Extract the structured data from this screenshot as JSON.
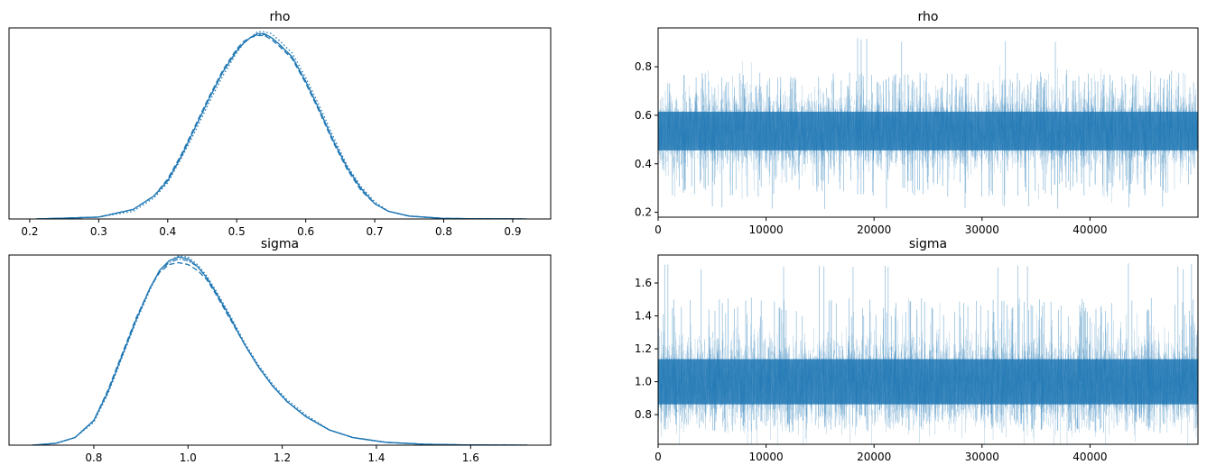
{
  "chart_data": [
    {
      "type": "line",
      "title": "rho",
      "xlabel": "",
      "ylabel": "",
      "xlim": [
        0.17,
        0.955
      ],
      "ylim": [
        0,
        1.0
      ],
      "xticks": [
        0.2,
        0.3,
        0.4,
        0.5,
        0.6,
        0.7,
        0.8,
        0.9
      ],
      "xtick_labels": [
        "0.2",
        "0.3",
        "0.4",
        "0.5",
        "0.6",
        "0.7",
        "0.8",
        "0.9"
      ],
      "yticks_visible": false,
      "color": "#1f77b4",
      "series": [
        {
          "style": "solid",
          "x": [
            0.21,
            0.3,
            0.35,
            0.38,
            0.4,
            0.42,
            0.44,
            0.46,
            0.48,
            0.5,
            0.51,
            0.52,
            0.53,
            0.54,
            0.55,
            0.56,
            0.58,
            0.6,
            0.62,
            0.64,
            0.66,
            0.68,
            0.7,
            0.72,
            0.75,
            0.8,
            0.85,
            0.92
          ],
          "values": [
            0.0,
            0.01,
            0.05,
            0.12,
            0.2,
            0.33,
            0.48,
            0.63,
            0.77,
            0.88,
            0.92,
            0.95,
            0.97,
            0.97,
            0.95,
            0.92,
            0.85,
            0.72,
            0.57,
            0.41,
            0.27,
            0.16,
            0.08,
            0.04,
            0.015,
            0.003,
            0.001,
            0.0
          ]
        },
        {
          "style": "dashed",
          "x": [
            0.21,
            0.3,
            0.35,
            0.38,
            0.4,
            0.42,
            0.44,
            0.46,
            0.48,
            0.5,
            0.51,
            0.52,
            0.53,
            0.54,
            0.55,
            0.56,
            0.58,
            0.6,
            0.62,
            0.64,
            0.66,
            0.68,
            0.7,
            0.72,
            0.75,
            0.8,
            0.85,
            0.92
          ],
          "values": [
            0.0,
            0.01,
            0.05,
            0.12,
            0.21,
            0.34,
            0.49,
            0.64,
            0.78,
            0.89,
            0.93,
            0.95,
            0.96,
            0.96,
            0.94,
            0.91,
            0.84,
            0.71,
            0.56,
            0.4,
            0.26,
            0.15,
            0.08,
            0.04,
            0.015,
            0.003,
            0.001,
            0.0
          ]
        },
        {
          "style": "dotted",
          "x": [
            0.21,
            0.3,
            0.35,
            0.38,
            0.4,
            0.42,
            0.44,
            0.46,
            0.48,
            0.5,
            0.51,
            0.52,
            0.53,
            0.54,
            0.55,
            0.56,
            0.58,
            0.6,
            0.62,
            0.64,
            0.66,
            0.68,
            0.7,
            0.72,
            0.75,
            0.8,
            0.85,
            0.92
          ],
          "values": [
            0.0,
            0.01,
            0.04,
            0.11,
            0.19,
            0.32,
            0.46,
            0.61,
            0.75,
            0.87,
            0.92,
            0.95,
            0.98,
            0.98,
            0.97,
            0.94,
            0.87,
            0.74,
            0.59,
            0.43,
            0.28,
            0.17,
            0.09,
            0.04,
            0.016,
            0.003,
            0.001,
            0.0
          ]
        },
        {
          "style": "dashdot",
          "x": [
            0.21,
            0.3,
            0.35,
            0.38,
            0.4,
            0.42,
            0.44,
            0.46,
            0.48,
            0.5,
            0.51,
            0.52,
            0.53,
            0.54,
            0.55,
            0.56,
            0.58,
            0.6,
            0.62,
            0.64,
            0.66,
            0.68,
            0.7,
            0.72,
            0.75,
            0.8,
            0.85,
            0.92
          ],
          "values": [
            0.0,
            0.01,
            0.05,
            0.12,
            0.2,
            0.33,
            0.48,
            0.63,
            0.77,
            0.88,
            0.92,
            0.95,
            0.965,
            0.965,
            0.95,
            0.92,
            0.85,
            0.72,
            0.57,
            0.41,
            0.27,
            0.16,
            0.08,
            0.04,
            0.015,
            0.003,
            0.001,
            0.0
          ]
        }
      ]
    },
    {
      "type": "line",
      "title": "rho",
      "xlabel": "",
      "ylabel": "",
      "xlim": [
        0,
        50000
      ],
      "ylim": [
        0.18,
        0.96
      ],
      "xticks": [
        0,
        10000,
        20000,
        30000,
        40000
      ],
      "xtick_labels": [
        "0",
        "10000",
        "20000",
        "30000",
        "40000"
      ],
      "yticks": [
        0.2,
        0.4,
        0.6,
        0.8
      ],
      "ytick_labels": [
        "0.2",
        "0.4",
        "0.6",
        "0.8"
      ],
      "color": "#1f77b4",
      "trace": {
        "draws": 50000,
        "dense_band": [
          0.38,
          0.67
        ],
        "outer_band": [
          0.3,
          0.75
        ],
        "center": 0.535,
        "extremes_min": 0.21,
        "extremes_max": 0.92
      }
    },
    {
      "type": "line",
      "title": "sigma",
      "xlabel": "",
      "ylabel": "",
      "xlim": [
        0.62,
        1.77
      ],
      "ylim": [
        0,
        1.0
      ],
      "xticks": [
        0.8,
        1.0,
        1.2,
        1.4,
        1.6
      ],
      "xtick_labels": [
        "0.8",
        "1.0",
        "1.2",
        "1.4",
        "1.6"
      ],
      "yticks_visible": false,
      "color": "#1f77b4",
      "series": [
        {
          "style": "solid",
          "x": [
            0.67,
            0.72,
            0.76,
            0.8,
            0.83,
            0.86,
            0.89,
            0.92,
            0.94,
            0.96,
            0.98,
            1.0,
            1.02,
            1.04,
            1.06,
            1.09,
            1.12,
            1.15,
            1.18,
            1.21,
            1.25,
            1.3,
            1.35,
            1.42,
            1.5,
            1.6,
            1.72
          ],
          "values": [
            0.0,
            0.01,
            0.04,
            0.13,
            0.28,
            0.47,
            0.66,
            0.83,
            0.92,
            0.97,
            0.99,
            0.98,
            0.94,
            0.88,
            0.8,
            0.67,
            0.53,
            0.41,
            0.31,
            0.23,
            0.15,
            0.08,
            0.04,
            0.015,
            0.005,
            0.001,
            0.0
          ]
        },
        {
          "style": "dashed",
          "x": [
            0.67,
            0.72,
            0.76,
            0.8,
            0.83,
            0.86,
            0.89,
            0.92,
            0.94,
            0.96,
            0.98,
            1.0,
            1.02,
            1.04,
            1.06,
            1.09,
            1.12,
            1.15,
            1.18,
            1.21,
            1.25,
            1.3,
            1.35,
            1.42,
            1.5,
            1.6,
            1.72
          ],
          "values": [
            0.0,
            0.01,
            0.04,
            0.13,
            0.29,
            0.48,
            0.67,
            0.83,
            0.91,
            0.95,
            0.96,
            0.95,
            0.92,
            0.87,
            0.79,
            0.66,
            0.53,
            0.41,
            0.31,
            0.23,
            0.15,
            0.08,
            0.04,
            0.015,
            0.005,
            0.001,
            0.0
          ]
        },
        {
          "style": "dotted",
          "x": [
            0.67,
            0.72,
            0.76,
            0.8,
            0.83,
            0.86,
            0.89,
            0.92,
            0.94,
            0.96,
            0.98,
            1.0,
            1.02,
            1.04,
            1.06,
            1.09,
            1.12,
            1.15,
            1.18,
            1.21,
            1.25,
            1.3,
            1.35,
            1.42,
            1.5,
            1.6,
            1.72
          ],
          "values": [
            0.0,
            0.01,
            0.04,
            0.12,
            0.27,
            0.46,
            0.65,
            0.82,
            0.92,
            0.97,
            0.995,
            0.99,
            0.95,
            0.89,
            0.81,
            0.68,
            0.54,
            0.42,
            0.32,
            0.24,
            0.16,
            0.08,
            0.04,
            0.015,
            0.005,
            0.001,
            0.0
          ]
        },
        {
          "style": "dashdot",
          "x": [
            0.67,
            0.72,
            0.76,
            0.8,
            0.83,
            0.86,
            0.89,
            0.92,
            0.94,
            0.96,
            0.98,
            1.0,
            1.02,
            1.04,
            1.06,
            1.09,
            1.12,
            1.15,
            1.18,
            1.21,
            1.25,
            1.3,
            1.35,
            1.42,
            1.5,
            1.6,
            1.72
          ],
          "values": [
            0.0,
            0.01,
            0.04,
            0.13,
            0.28,
            0.47,
            0.66,
            0.83,
            0.92,
            0.96,
            0.98,
            0.97,
            0.94,
            0.88,
            0.8,
            0.67,
            0.53,
            0.41,
            0.31,
            0.23,
            0.15,
            0.08,
            0.04,
            0.015,
            0.005,
            0.001,
            0.0
          ]
        }
      ]
    },
    {
      "type": "line",
      "title": "sigma",
      "xlabel": "",
      "ylabel": "",
      "xlim": [
        0,
        50000
      ],
      "ylim": [
        0.62,
        1.77
      ],
      "xticks": [
        0,
        10000,
        20000,
        30000,
        40000
      ],
      "xtick_labels": [
        "0",
        "10000",
        "20000",
        "30000",
        "40000"
      ],
      "yticks": [
        0.8,
        1.0,
        1.2,
        1.4,
        1.6
      ],
      "ytick_labels": [
        "0.8",
        "1.0",
        "1.2",
        "1.4",
        "1.6"
      ],
      "color": "#1f77b4",
      "trace": {
        "draws": 50000,
        "dense_band": [
          0.8,
          1.3
        ],
        "outer_band": [
          0.75,
          1.45
        ],
        "center": 1.0,
        "extremes_min": 0.7,
        "extremes_max": 1.72
      }
    }
  ]
}
